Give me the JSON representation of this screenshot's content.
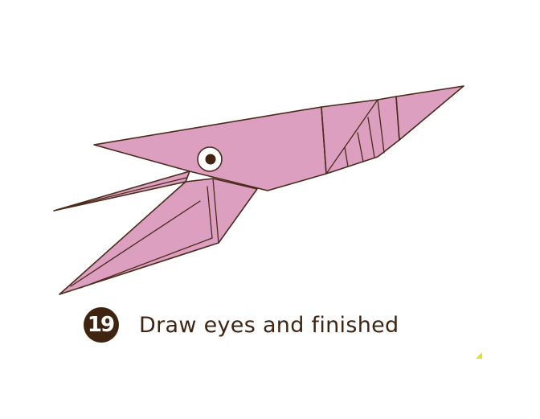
{
  "step": {
    "number": "19",
    "text": "Draw eyes and finished"
  },
  "colors": {
    "body_fill": "#dd9fbf",
    "outline": "#4a2a1a",
    "badge": "#3f2412",
    "eye_pupil": "#3f2412",
    "corner_mark": "#e2df2a"
  }
}
